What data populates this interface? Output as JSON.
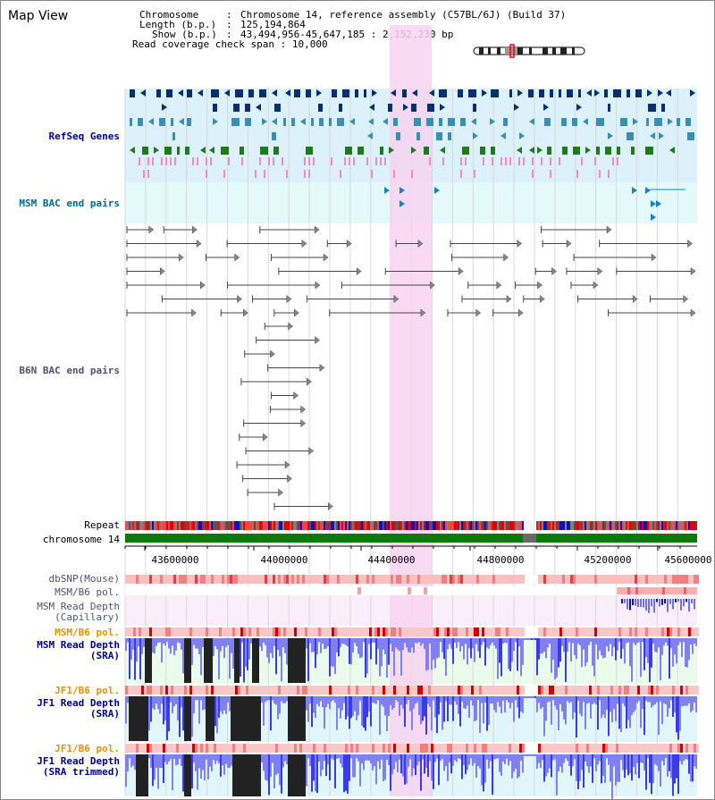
{
  "title": "Map View",
  "info": {
    "chromosome_label": "Chromosome",
    "chromosome_value": "Chromosome 14, reference assembly (C57BL/6J) (Build 37)",
    "length_label": "Length (b.p.)",
    "length_value": "125,194,864",
    "show_label": "Show (b.p.)",
    "show_value": "43,494,956-45,647,185 : 2,152,230 bp",
    "coverage_label": "Read coverage check span",
    "coverage_value": "10,000"
  },
  "tracks": {
    "refseq": "RefSeq Genes",
    "msm_bac": "MSM BAC end pairs",
    "b6n_bac": "B6N BAC end pairs",
    "repeat": "Repeat",
    "chromosome": "chromosome 14",
    "dbsnp": "dbSNP(Mouse)",
    "msm_b6_pol": "MSM/B6 pol.",
    "msm_depth_cap_1": "MSM Read Depth",
    "msm_depth_cap_2": "(Capillary)",
    "msm_b6_pol2": "MSM/B6 pol.",
    "msm_depth_sra_1": "MSM Read Depth",
    "msm_depth_sra_2": "(SRA)",
    "jf1_b6_pol": "JF1/B6 pol.",
    "jf1_depth_sra_1": "JF1 Read Depth",
    "jf1_depth_sra_2": "(SRA)",
    "jf1_b6_pol2": "JF1/B6 pol.",
    "jf1_depth_trim_1": "JF1 Read Depth",
    "jf1_depth_trim_2": "(SRA trimmed)"
  },
  "axis": {
    "ticks": [
      "43600000",
      "44000000",
      "44400000",
      "44800000",
      "45200000",
      "45600000"
    ]
  },
  "colors": {
    "refseq_bg": "#dcf1fa",
    "msm_bac_bg": "#e4fafa",
    "highlight": "#f7d4f0",
    "chromosome_bar": "#0a7a0a",
    "depth_blue": "#3a3ae8",
    "depth_black": "#222222",
    "pol_red": "#e02020"
  }
}
